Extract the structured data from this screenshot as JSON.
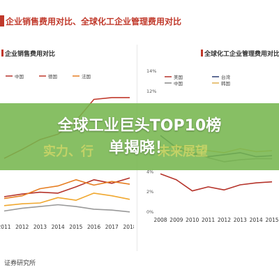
{
  "header": {
    "text": "企业销售费用对比、全球化工企业管理费用对比"
  },
  "headline": {
    "line1": "全球工业巨头TOP10榜",
    "line2": "单揭晓！"
  },
  "faded_subtitle": {
    "left": "实力、行",
    "right": "未来展望"
  },
  "source": {
    "text": "证券研究所"
  },
  "colors": {
    "accent": "#c0392b",
    "band": "#76b64e",
    "headline": "#ffffff"
  },
  "chart_data": [
    {
      "type": "line",
      "title": "企业销售费用对比",
      "legend": [
        "中国",
        "德国",
        "法国"
      ],
      "categories": [
        "2011",
        "2012",
        "2013",
        "2014",
        "2015",
        "2016",
        "2017",
        "2018"
      ],
      "series": [
        {
          "name": "中国",
          "color": "#b5332a",
          "values": [
            0.5,
            0.8,
            1.0,
            0.9,
            1.6,
            2.4,
            2.0,
            2.6
          ]
        },
        {
          "name": "德国",
          "color": "#c0392b",
          "values": [
            4.8,
            5.8,
            6.9,
            7.5,
            9.0,
            11.4,
            11.6,
            11.6
          ]
        },
        {
          "name": "法国",
          "color": "#e67e22",
          "values": [
            0.3,
            0.6,
            1.4,
            1.7,
            2.4,
            1.8,
            2.2,
            1.9
          ]
        },
        {
          "name": "",
          "color": "#f0a830",
          "values": [
            -0.5,
            -0.3,
            -0.2,
            0.4,
            0.1,
            0.9,
            0.6,
            0.2
          ]
        },
        {
          "name": "",
          "color": "#999999",
          "values": [
            -1.1,
            -0.8,
            -0.6,
            -0.4,
            -0.6,
            -0.9,
            -1.0,
            -1.2
          ]
        }
      ],
      "ylim": [
        -2,
        13
      ]
    },
    {
      "type": "line",
      "title": "全球化工企业管理费用对比",
      "legend": [
        "美国",
        "台湾",
        "中国",
        "韩国"
      ],
      "categories": [
        "2008",
        "2009",
        "2010",
        "2011",
        "2012",
        "2013",
        "2014",
        "2015"
      ],
      "yticks": [
        "0%",
        "2%",
        "4%",
        "12%",
        "14%"
      ],
      "series": [
        {
          "name": "美国",
          "color": "#b5332a",
          "values": [
            3.8,
            3.2,
            2.1,
            2.5,
            2.2,
            2.7,
            2.9,
            3.0
          ]
        },
        {
          "name": "台湾",
          "color": "#2c3e73",
          "values": [
            7.6,
            6.4,
            5.8,
            5.5,
            5.7,
            5.9,
            5.5,
            5.6
          ]
        },
        {
          "name": "中国",
          "color": "#888888",
          "values": [
            5.8,
            6.2,
            6.0,
            5.4,
            5.0,
            5.2,
            5.3,
            5.3
          ]
        },
        {
          "name": "韩国",
          "color": "#e0b050",
          "values": [
            6.2,
            6.6,
            6.4,
            6.1,
            5.9,
            6.3,
            6.0,
            6.1
          ]
        }
      ],
      "ylim": [
        0,
        14
      ]
    }
  ]
}
